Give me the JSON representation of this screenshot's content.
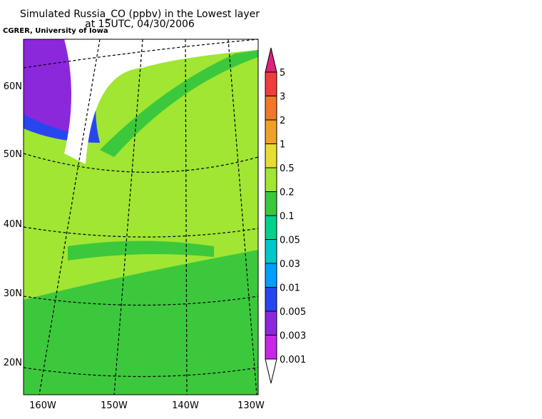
{
  "header": {
    "title_line1": "Simulated Russia_CO (ppbv) in the Lowest layer",
    "title_line2": "at 15UTC, 04/30/2006",
    "credit": "CGRER, University of Iowa"
  },
  "map": {
    "lat_labels": [
      "60N",
      "50N",
      "40N",
      "30N",
      "20N"
    ],
    "lon_labels": [
      "160W",
      "150W",
      "140W",
      "130W"
    ]
  },
  "colorbar": {
    "labels": [
      5,
      3,
      2,
      1,
      0.5,
      0.2,
      0.1,
      0.05,
      0.03,
      0.01,
      0.005,
      0.003,
      0.001
    ],
    "colors": [
      "#e0207a",
      "#f03c3c",
      "#f07828",
      "#f0a028",
      "#e6dc32",
      "#a0e632",
      "#3cc83c",
      "#00d28c",
      "#00c8c8",
      "#00a0ff",
      "#2846f0",
      "#8c28dc",
      "#c828e6",
      "#ffffff"
    ]
  }
}
